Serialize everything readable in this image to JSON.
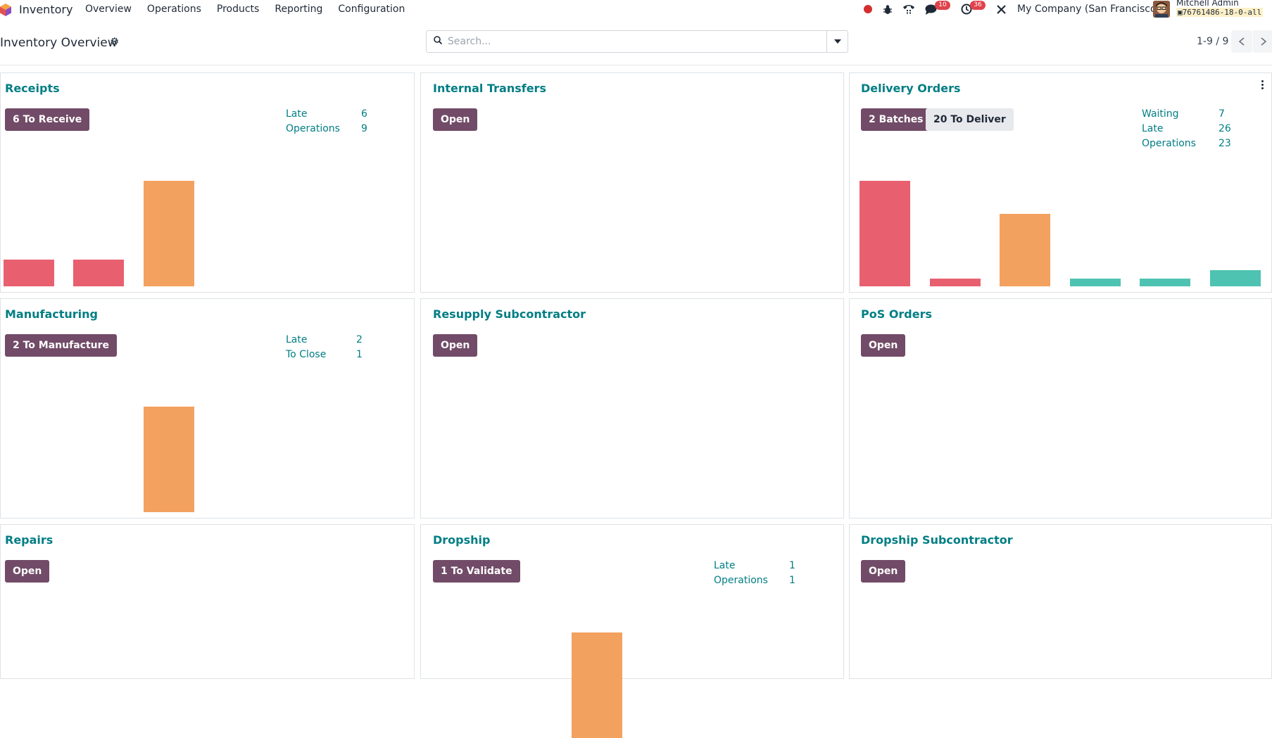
{
  "navbar": {
    "app_name": "Inventory",
    "menu": [
      "Overview",
      "Operations",
      "Products",
      "Reporting",
      "Configuration"
    ],
    "messages_count": "10",
    "activities_count": "36",
    "company": "My Company (San Francisco)",
    "user_name": "Mitchell Admin",
    "db_name": "76761486-18-0-all"
  },
  "control_panel": {
    "title": "Inventory Overview",
    "search_placeholder": "Search...",
    "pager": "1-9 / 9"
  },
  "colors": {
    "primary": "#714b67",
    "teal": "#017e84",
    "late_bar": "#e8606f",
    "normal_bar": "#f3a15f",
    "future_bar": "#4fc3b1"
  },
  "cards": {
    "receipts": {
      "title": "Receipts",
      "button": "6 To Receive",
      "stats": [
        {
          "label": "Late",
          "value": "6"
        },
        {
          "label": "Operations",
          "value": "9"
        }
      ],
      "bar_levels": [
        0.25,
        0.25,
        1.0
      ]
    },
    "internal_transfers": {
      "title": "Internal Transfers",
      "button": "Open"
    },
    "delivery_orders": {
      "title": "Delivery Orders",
      "button_batches": "2 Batches",
      "button_deliver": "20 To Deliver",
      "stats": [
        {
          "label": "Waiting",
          "value": "7"
        },
        {
          "label": "Late",
          "value": "26"
        },
        {
          "label": "Operations",
          "value": "23"
        }
      ],
      "bar_levels": [
        1.0,
        0.07,
        0.69,
        0.07,
        0.07,
        0.15
      ]
    },
    "manufacturing": {
      "title": "Manufacturing",
      "button": "2 To Manufacture",
      "stats": [
        {
          "label": "Late",
          "value": "2"
        },
        {
          "label": "To Close",
          "value": "1"
        }
      ],
      "bar_levels": [
        0,
        0,
        1.0
      ]
    },
    "resupply_subcontractor": {
      "title": "Resupply Subcontractor",
      "button": "Open"
    },
    "pos_orders": {
      "title": "PoS Orders",
      "button": "Open"
    },
    "repairs": {
      "title": "Repairs",
      "button": "Open"
    },
    "dropship": {
      "title": "Dropship",
      "button": "1 To Validate",
      "stats": [
        {
          "label": "Late",
          "value": "1"
        },
        {
          "label": "Operations",
          "value": "1"
        }
      ],
      "bar_levels": [
        0,
        0,
        1.0
      ]
    },
    "dropship_subcontractor": {
      "title": "Dropship Subcontractor",
      "button": "Open"
    }
  }
}
